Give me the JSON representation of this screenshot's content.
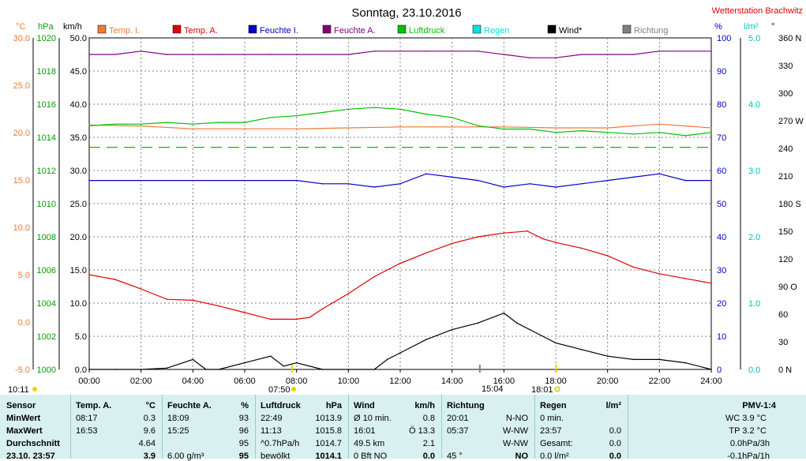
{
  "header": {
    "title": "Sonntag, 23.10.2016",
    "station": "Wetterstation Brachwitz"
  },
  "legend": [
    {
      "label": "Temp. I.",
      "color": "#f07838"
    },
    {
      "label": "Temp. A.",
      "color": "#e00000"
    },
    {
      "label": "Feuchte I.",
      "color": "#0000c8"
    },
    {
      "label": "Feuchte A.",
      "color": "#800080"
    },
    {
      "label": "Luftdruck",
      "color": "#00c000"
    },
    {
      "label": "Regen",
      "color": "#00e0e0"
    },
    {
      "label": "Wind*",
      "color": "#000000"
    },
    {
      "label": "Richtung",
      "color": "#808080"
    }
  ],
  "axes": {
    "temp_unit": "°C",
    "pressure_unit": "hPa",
    "wind_unit": "km/h",
    "humidity_unit": "%",
    "rain_unit": "l/m²",
    "direction_unit": "°",
    "temp_ticks": [
      "30.0",
      "25.0",
      "20.0",
      "15.0",
      "10.0",
      "5.0",
      "0.0",
      "-5.0"
    ],
    "pressure_ticks": [
      "1020",
      "1018",
      "1016",
      "1014",
      "1012",
      "1010",
      "1008",
      "1006",
      "1004",
      "1002",
      "1000"
    ],
    "wind_ticks": [
      "50.0",
      "45.0",
      "40.0",
      "35.0",
      "30.0",
      "25.0",
      "20.0",
      "15.0",
      "10.0",
      "5.0",
      "0.0"
    ],
    "humidity_ticks": [
      "100",
      "90",
      "80",
      "70",
      "60",
      "50",
      "40",
      "30",
      "20",
      "10",
      "0"
    ],
    "rain_ticks": [
      "5.0",
      "4.0",
      "3.0",
      "2.0",
      "1.0",
      "0.0"
    ],
    "direction_ticks": [
      "360 N",
      "330",
      "300",
      "270 W",
      "240",
      "210",
      "180 S",
      "150",
      "120",
      "90 O",
      "60",
      "30",
      "0 N"
    ],
    "x_ticks": [
      "00:00",
      "02:00",
      "04:00",
      "06:00",
      "08:00",
      "10:00",
      "12:00",
      "14:00",
      "16:00",
      "18:00",
      "20:00",
      "22:00",
      "24:00"
    ]
  },
  "sun": {
    "left_time": "10:11",
    "sunrise": "07:50",
    "moon": "15:04",
    "sunset": "18:01"
  },
  "chart_data": {
    "type": "line",
    "x_unit": "hours",
    "series": [
      {
        "name": "Temp. I.",
        "axis": "temp",
        "values": [
          [
            0,
            20.8
          ],
          [
            2,
            20.7
          ],
          [
            4,
            20.4
          ],
          [
            6,
            20.4
          ],
          [
            8,
            20.4
          ],
          [
            10,
            20.5
          ],
          [
            12,
            20.6
          ],
          [
            14,
            20.6
          ],
          [
            16,
            20.6
          ],
          [
            18,
            20.5
          ],
          [
            20,
            20.5
          ],
          [
            22,
            20.9
          ],
          [
            23,
            20.7
          ],
          [
            24,
            20.5
          ]
        ]
      },
      {
        "name": "Temp. A.",
        "axis": "temp",
        "values": [
          [
            0,
            5.0
          ],
          [
            1,
            4.5
          ],
          [
            2,
            3.5
          ],
          [
            3,
            2.4
          ],
          [
            4,
            2.3
          ],
          [
            5,
            1.7
          ],
          [
            6,
            1.0
          ],
          [
            7,
            0.3
          ],
          [
            8,
            0.3
          ],
          [
            8.5,
            0.5
          ],
          [
            9,
            1.4
          ],
          [
            10,
            3.0
          ],
          [
            11,
            4.8
          ],
          [
            12,
            6.2
          ],
          [
            13,
            7.3
          ],
          [
            14,
            8.3
          ],
          [
            15,
            9.0
          ],
          [
            16,
            9.4
          ],
          [
            16.9,
            9.6
          ],
          [
            17.5,
            8.8
          ],
          [
            18,
            8.4
          ],
          [
            19,
            7.8
          ],
          [
            20,
            7.0
          ],
          [
            21,
            5.8
          ],
          [
            22,
            5.1
          ],
          [
            23,
            4.6
          ],
          [
            24,
            4.1
          ]
        ]
      },
      {
        "name": "Feuchte I.",
        "axis": "humidity",
        "values": [
          [
            0,
            57
          ],
          [
            8,
            57
          ],
          [
            9,
            56
          ],
          [
            10,
            56
          ],
          [
            11,
            55
          ],
          [
            12,
            56
          ],
          [
            13,
            59
          ],
          [
            14,
            58
          ],
          [
            15,
            57
          ],
          [
            16,
            55
          ],
          [
            17,
            56
          ],
          [
            18,
            55
          ],
          [
            19,
            56
          ],
          [
            20,
            57
          ],
          [
            21,
            58
          ],
          [
            22,
            59
          ],
          [
            23,
            57
          ],
          [
            24,
            57
          ]
        ]
      },
      {
        "name": "Feuchte A.",
        "axis": "humidity",
        "values": [
          [
            0,
            95
          ],
          [
            1,
            95
          ],
          [
            2,
            96
          ],
          [
            3,
            95
          ],
          [
            4,
            95
          ],
          [
            5,
            95
          ],
          [
            6,
            95
          ],
          [
            7,
            95
          ],
          [
            8,
            95
          ],
          [
            10,
            95
          ],
          [
            11,
            96
          ],
          [
            13,
            96
          ],
          [
            15,
            96
          ],
          [
            16,
            95
          ],
          [
            17,
            94
          ],
          [
            18,
            94
          ],
          [
            19,
            95
          ],
          [
            20,
            95
          ],
          [
            21,
            95
          ],
          [
            22,
            96
          ],
          [
            24,
            96
          ]
        ]
      },
      {
        "name": "Luftdruck",
        "axis": "pressure",
        "values": [
          [
            0,
            1014.7
          ],
          [
            1,
            1014.8
          ],
          [
            2,
            1014.8
          ],
          [
            3,
            1014.9
          ],
          [
            4,
            1014.8
          ],
          [
            5,
            1014.9
          ],
          [
            6,
            1014.9
          ],
          [
            7,
            1015.2
          ],
          [
            8,
            1015.3
          ],
          [
            9,
            1015.5
          ],
          [
            10,
            1015.7
          ],
          [
            11,
            1015.8
          ],
          [
            12,
            1015.7
          ],
          [
            13,
            1015.4
          ],
          [
            14,
            1015.2
          ],
          [
            15,
            1014.7
          ],
          [
            16,
            1014.5
          ],
          [
            17,
            1014.5
          ],
          [
            18,
            1014.3
          ],
          [
            19,
            1014.4
          ],
          [
            20,
            1014.3
          ],
          [
            21,
            1014.2
          ],
          [
            22,
            1014.3
          ],
          [
            23,
            1014.1
          ],
          [
            24,
            1014.3
          ]
        ]
      },
      {
        "name": "Wind*",
        "axis": "wind",
        "values": [
          [
            0,
            0
          ],
          [
            1,
            0
          ],
          [
            2,
            0
          ],
          [
            3,
            0.2
          ],
          [
            4,
            1.5
          ],
          [
            4.5,
            0
          ],
          [
            5,
            0
          ],
          [
            6,
            1
          ],
          [
            7,
            2
          ],
          [
            7.5,
            0.5
          ],
          [
            8,
            1
          ],
          [
            9,
            0
          ],
          [
            10,
            0
          ],
          [
            11,
            0
          ],
          [
            11.5,
            1.5
          ],
          [
            12,
            2.5
          ],
          [
            13,
            4.5
          ],
          [
            14,
            6
          ],
          [
            15,
            7
          ],
          [
            16,
            8.5
          ],
          [
            16.5,
            7
          ],
          [
            17,
            6
          ],
          [
            18,
            4
          ],
          [
            19,
            3
          ],
          [
            20,
            2
          ],
          [
            21,
            1.5
          ],
          [
            22,
            1.5
          ],
          [
            23,
            1
          ],
          [
            24,
            0
          ]
        ]
      }
    ],
    "dashed_reference": {
      "axis": "pressure",
      "value": 1013.4
    }
  },
  "table": {
    "sensor": {
      "header": "Sensor",
      "rows": [
        "MinWert",
        "MaxWert",
        "Durchschnitt",
        "23.10. 23:57"
      ]
    },
    "temp": {
      "header": "Temp. A.",
      "unit": "°C",
      "rows": [
        [
          "08:17",
          "0.3"
        ],
        [
          "16:53",
          "9.6"
        ],
        [
          "",
          "4.64"
        ],
        [
          "",
          "3.9"
        ]
      ]
    },
    "humidity": {
      "header": "Feuchte A.",
      "unit": "%",
      "rows": [
        [
          "18:09",
          "93"
        ],
        [
          "15:25",
          "96"
        ],
        [
          "",
          "95"
        ],
        [
          "6.00 g/m³",
          "95"
        ]
      ]
    },
    "pressure": {
      "header": "Luftdruck",
      "unit": "hPa",
      "rows": [
        [
          "22:49",
          "1013.9"
        ],
        [
          "11:13",
          "1015.8"
        ],
        [
          "^0.7hPa/h",
          "1014.7"
        ],
        [
          "bewölkt",
          "1014.1"
        ]
      ]
    },
    "wind": {
      "header": "Wind",
      "unit": "km/h",
      "rows": [
        [
          "Ø 10 min.",
          "0.8"
        ],
        [
          "16:01",
          "Ö 13.3"
        ],
        [
          "49.5 km",
          "2.1"
        ],
        [
          "0 Bft NO",
          "0.0"
        ]
      ]
    },
    "direction": {
      "header": "Richtung",
      "rows": [
        [
          "20:01",
          "N-NO"
        ],
        [
          "05:37",
          "W-NW"
        ],
        [
          "",
          "W-NW"
        ],
        [
          "45 °",
          "NO"
        ]
      ]
    },
    "rain": {
      "header": "Regen",
      "unit": "l/m²",
      "rows": [
        [
          "0 min.",
          ""
        ],
        [
          "23:57",
          "0.0"
        ],
        [
          "Gesamt:",
          "0.0"
        ],
        [
          "0.0 l/m²",
          "0.0"
        ]
      ]
    },
    "pmv": {
      "header": "PMV-1:4",
      "rows": [
        "WC 3.9 °C",
        "TP 3.2 °C",
        "0.0hPa/3h",
        "-0.1hPa/1h"
      ]
    }
  }
}
